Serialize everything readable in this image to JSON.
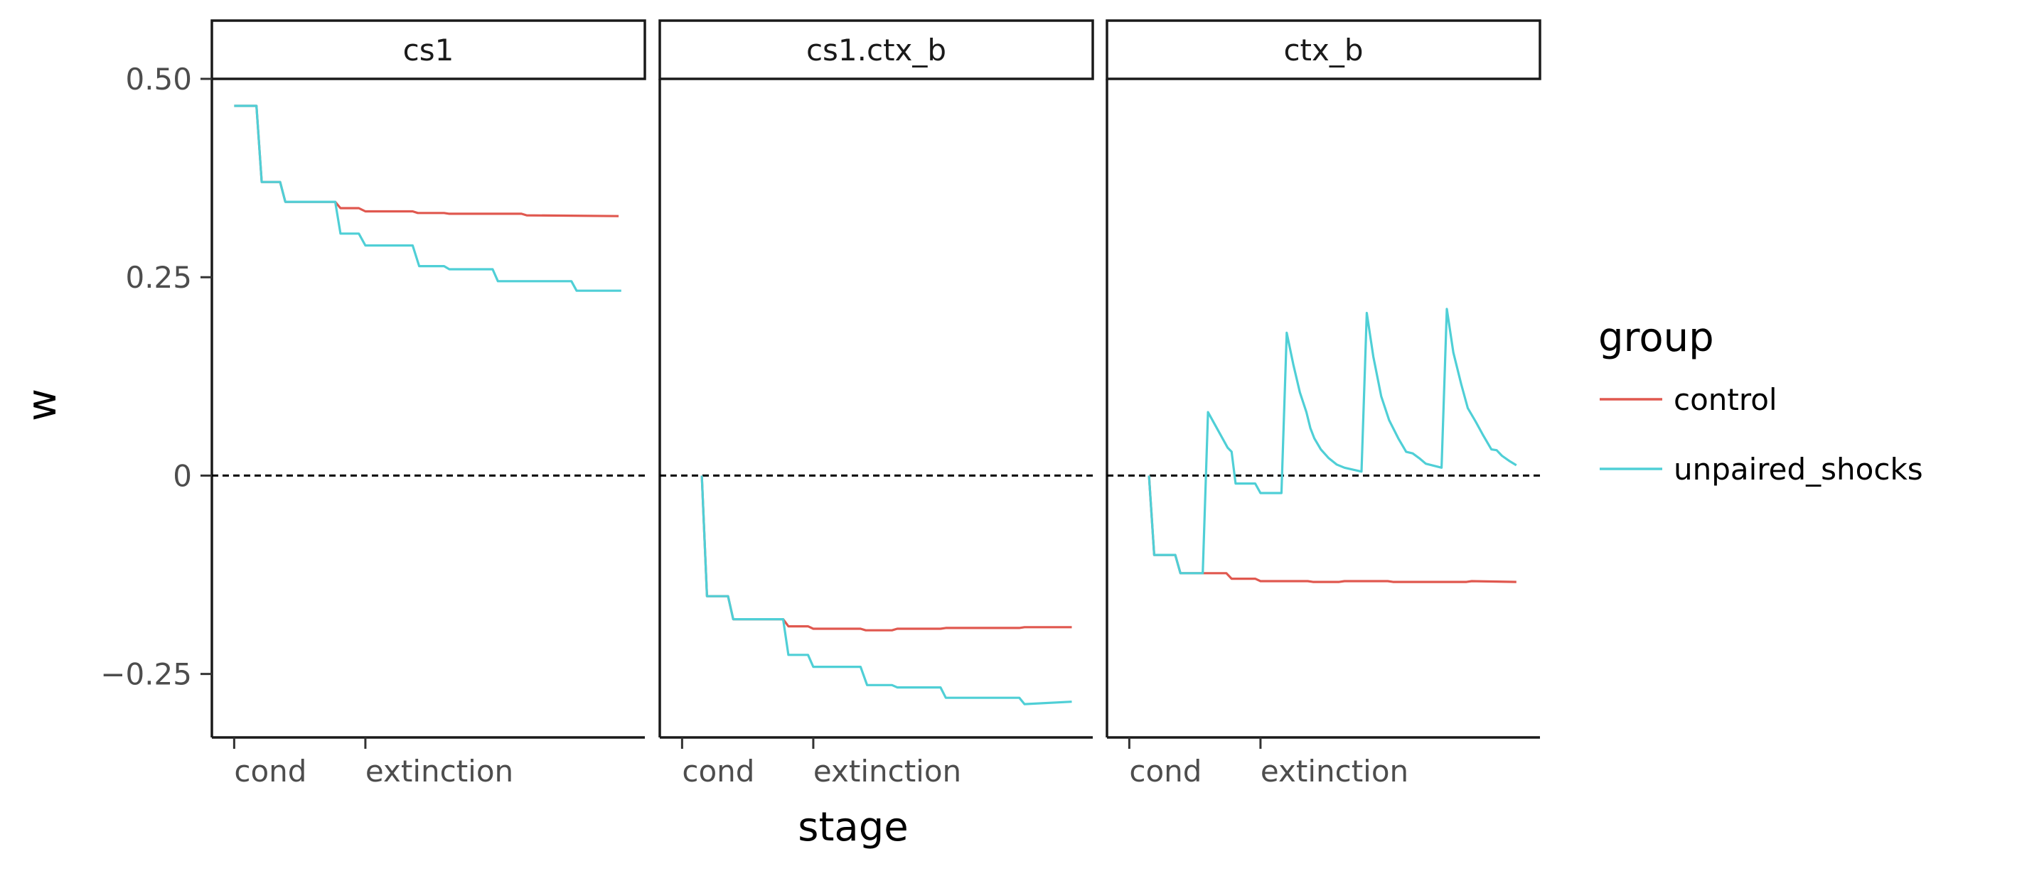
{
  "chart_data": {
    "type": "line",
    "facet_by": "cue",
    "xlabel": "stage",
    "ylabel": "w",
    "ylim": [
      -0.33,
      0.5
    ],
    "yticks": [
      {
        "value": 0.5,
        "label": "0.50"
      },
      {
        "value": 0.25,
        "label": "0.25"
      },
      {
        "value": 0,
        "label": "0"
      },
      {
        "value": -0.25,
        "label": "−0.25"
      }
    ],
    "x_range": [
      -0.17,
      3.13
    ],
    "xticks": [
      {
        "value": 0,
        "label": "cond"
      },
      {
        "value": 1,
        "label": "extinction"
      }
    ],
    "reference_line": {
      "y": 0,
      "style": "dashed",
      "color": "#000000"
    },
    "legend": {
      "title": "group",
      "position": "right",
      "entries": [
        {
          "name": "control",
          "color": "#e0584f"
        },
        {
          "name": "unpaired_shocks",
          "color": "#4fcfd6"
        }
      ]
    },
    "panels": [
      {
        "title": "cs1",
        "series": [
          {
            "name": "control",
            "color": "#e0584f",
            "points": [
              [
                0,
                0.466
              ],
              [
                0.17,
                0.466
              ],
              [
                0.21,
                0.37
              ],
              [
                0.35,
                0.37
              ],
              [
                0.39,
                0.345
              ],
              [
                0.77,
                0.345
              ],
              [
                0.81,
                0.337
              ],
              [
                0.95,
                0.337
              ],
              [
                1.0,
                0.333
              ],
              [
                1.36,
                0.333
              ],
              [
                1.4,
                0.331
              ],
              [
                1.6,
                0.331
              ],
              [
                1.64,
                0.33
              ],
              [
                2.19,
                0.33
              ],
              [
                2.23,
                0.328
              ],
              [
                2.93,
                0.327
              ]
            ]
          },
          {
            "name": "unpaired_shocks",
            "color": "#4fcfd6",
            "points": [
              [
                0,
                0.466
              ],
              [
                0.17,
                0.466
              ],
              [
                0.21,
                0.37
              ],
              [
                0.35,
                0.37
              ],
              [
                0.39,
                0.345
              ],
              [
                0.77,
                0.345
              ],
              [
                0.81,
                0.305
              ],
              [
                0.95,
                0.305
              ],
              [
                1.0,
                0.29
              ],
              [
                1.36,
                0.29
              ],
              [
                1.41,
                0.264
              ],
              [
                1.6,
                0.264
              ],
              [
                1.64,
                0.26
              ],
              [
                1.97,
                0.26
              ],
              [
                2.01,
                0.245
              ],
              [
                2.57,
                0.245
              ],
              [
                2.61,
                0.233
              ],
              [
                2.95,
                0.233
              ]
            ]
          }
        ]
      },
      {
        "title": "cs1.ctx_b",
        "series": [
          {
            "name": "control",
            "color": "#e0584f",
            "points": [
              [
                0.15,
                0
              ],
              [
                0.19,
                -0.152
              ],
              [
                0.35,
                -0.152
              ],
              [
                0.39,
                -0.181
              ],
              [
                0.77,
                -0.181
              ],
              [
                0.81,
                -0.19
              ],
              [
                0.96,
                -0.19
              ],
              [
                1.0,
                -0.193
              ],
              [
                1.36,
                -0.193
              ],
              [
                1.4,
                -0.195
              ],
              [
                1.6,
                -0.195
              ],
              [
                1.64,
                -0.193
              ],
              [
                1.97,
                -0.193
              ],
              [
                2.01,
                -0.192
              ],
              [
                2.57,
                -0.192
              ],
              [
                2.61,
                -0.191
              ],
              [
                2.97,
                -0.191
              ]
            ]
          },
          {
            "name": "unpaired_shocks",
            "color": "#4fcfd6",
            "points": [
              [
                0.15,
                0
              ],
              [
                0.19,
                -0.152
              ],
              [
                0.35,
                -0.152
              ],
              [
                0.39,
                -0.181
              ],
              [
                0.77,
                -0.181
              ],
              [
                0.81,
                -0.226
              ],
              [
                0.96,
                -0.226
              ],
              [
                1.0,
                -0.241
              ],
              [
                1.36,
                -0.241
              ],
              [
                1.41,
                -0.264
              ],
              [
                1.6,
                -0.264
              ],
              [
                1.64,
                -0.267
              ],
              [
                1.97,
                -0.267
              ],
              [
                2.01,
                -0.28
              ],
              [
                2.57,
                -0.28
              ],
              [
                2.61,
                -0.288
              ],
              [
                2.97,
                -0.285
              ]
            ]
          }
        ]
      },
      {
        "title": "ctx_b",
        "series": [
          {
            "name": "control",
            "color": "#e0584f",
            "points": [
              [
                0.15,
                0
              ],
              [
                0.19,
                -0.1
              ],
              [
                0.35,
                -0.1
              ],
              [
                0.39,
                -0.123
              ],
              [
                0.74,
                -0.123
              ],
              [
                0.78,
                -0.13
              ],
              [
                0.96,
                -0.13
              ],
              [
                1.0,
                -0.133
              ],
              [
                1.36,
                -0.133
              ],
              [
                1.4,
                -0.134
              ],
              [
                1.6,
                -0.134
              ],
              [
                1.64,
                -0.133
              ],
              [
                1.97,
                -0.133
              ],
              [
                2.01,
                -0.134
              ],
              [
                2.57,
                -0.134
              ],
              [
                2.61,
                -0.133
              ],
              [
                2.95,
                -0.134
              ]
            ]
          },
          {
            "name": "unpaired_shocks",
            "color": "#4fcfd6",
            "points": [
              [
                0.15,
                0
              ],
              [
                0.19,
                -0.1
              ],
              [
                0.35,
                -0.1
              ],
              [
                0.39,
                -0.123
              ],
              [
                0.56,
                -0.123
              ],
              [
                0.6,
                0.08
              ],
              [
                0.65,
                0.065
              ],
              [
                0.7,
                0.05
              ],
              [
                0.75,
                0.035
              ],
              [
                0.78,
                0.03
              ],
              [
                0.81,
                -0.01
              ],
              [
                0.96,
                -0.01
              ],
              [
                1.0,
                -0.022
              ],
              [
                1.16,
                -0.022
              ],
              [
                1.2,
                0.18
              ],
              [
                1.25,
                0.14
              ],
              [
                1.3,
                0.105
              ],
              [
                1.35,
                0.08
              ],
              [
                1.38,
                0.06
              ],
              [
                1.41,
                0.047
              ],
              [
                1.46,
                0.033
              ],
              [
                1.52,
                0.022
              ],
              [
                1.58,
                0.014
              ],
              [
                1.64,
                0.01
              ],
              [
                1.77,
                0.005
              ],
              [
                1.81,
                0.205
              ],
              [
                1.86,
                0.15
              ],
              [
                1.92,
                0.1
              ],
              [
                1.98,
                0.07
              ],
              [
                2.05,
                0.047
              ],
              [
                2.11,
                0.03
              ],
              [
                2.16,
                0.028
              ],
              [
                2.21,
                0.022
              ],
              [
                2.26,
                0.015
              ],
              [
                2.38,
                0.01
              ],
              [
                2.42,
                0.21
              ],
              [
                2.47,
                0.155
              ],
              [
                2.53,
                0.115
              ],
              [
                2.58,
                0.085
              ],
              [
                2.64,
                0.068
              ],
              [
                2.7,
                0.05
              ],
              [
                2.76,
                0.033
              ],
              [
                2.8,
                0.032
              ],
              [
                2.84,
                0.025
              ],
              [
                2.9,
                0.018
              ],
              [
                2.95,
                0.013
              ]
            ]
          }
        ]
      }
    ]
  }
}
